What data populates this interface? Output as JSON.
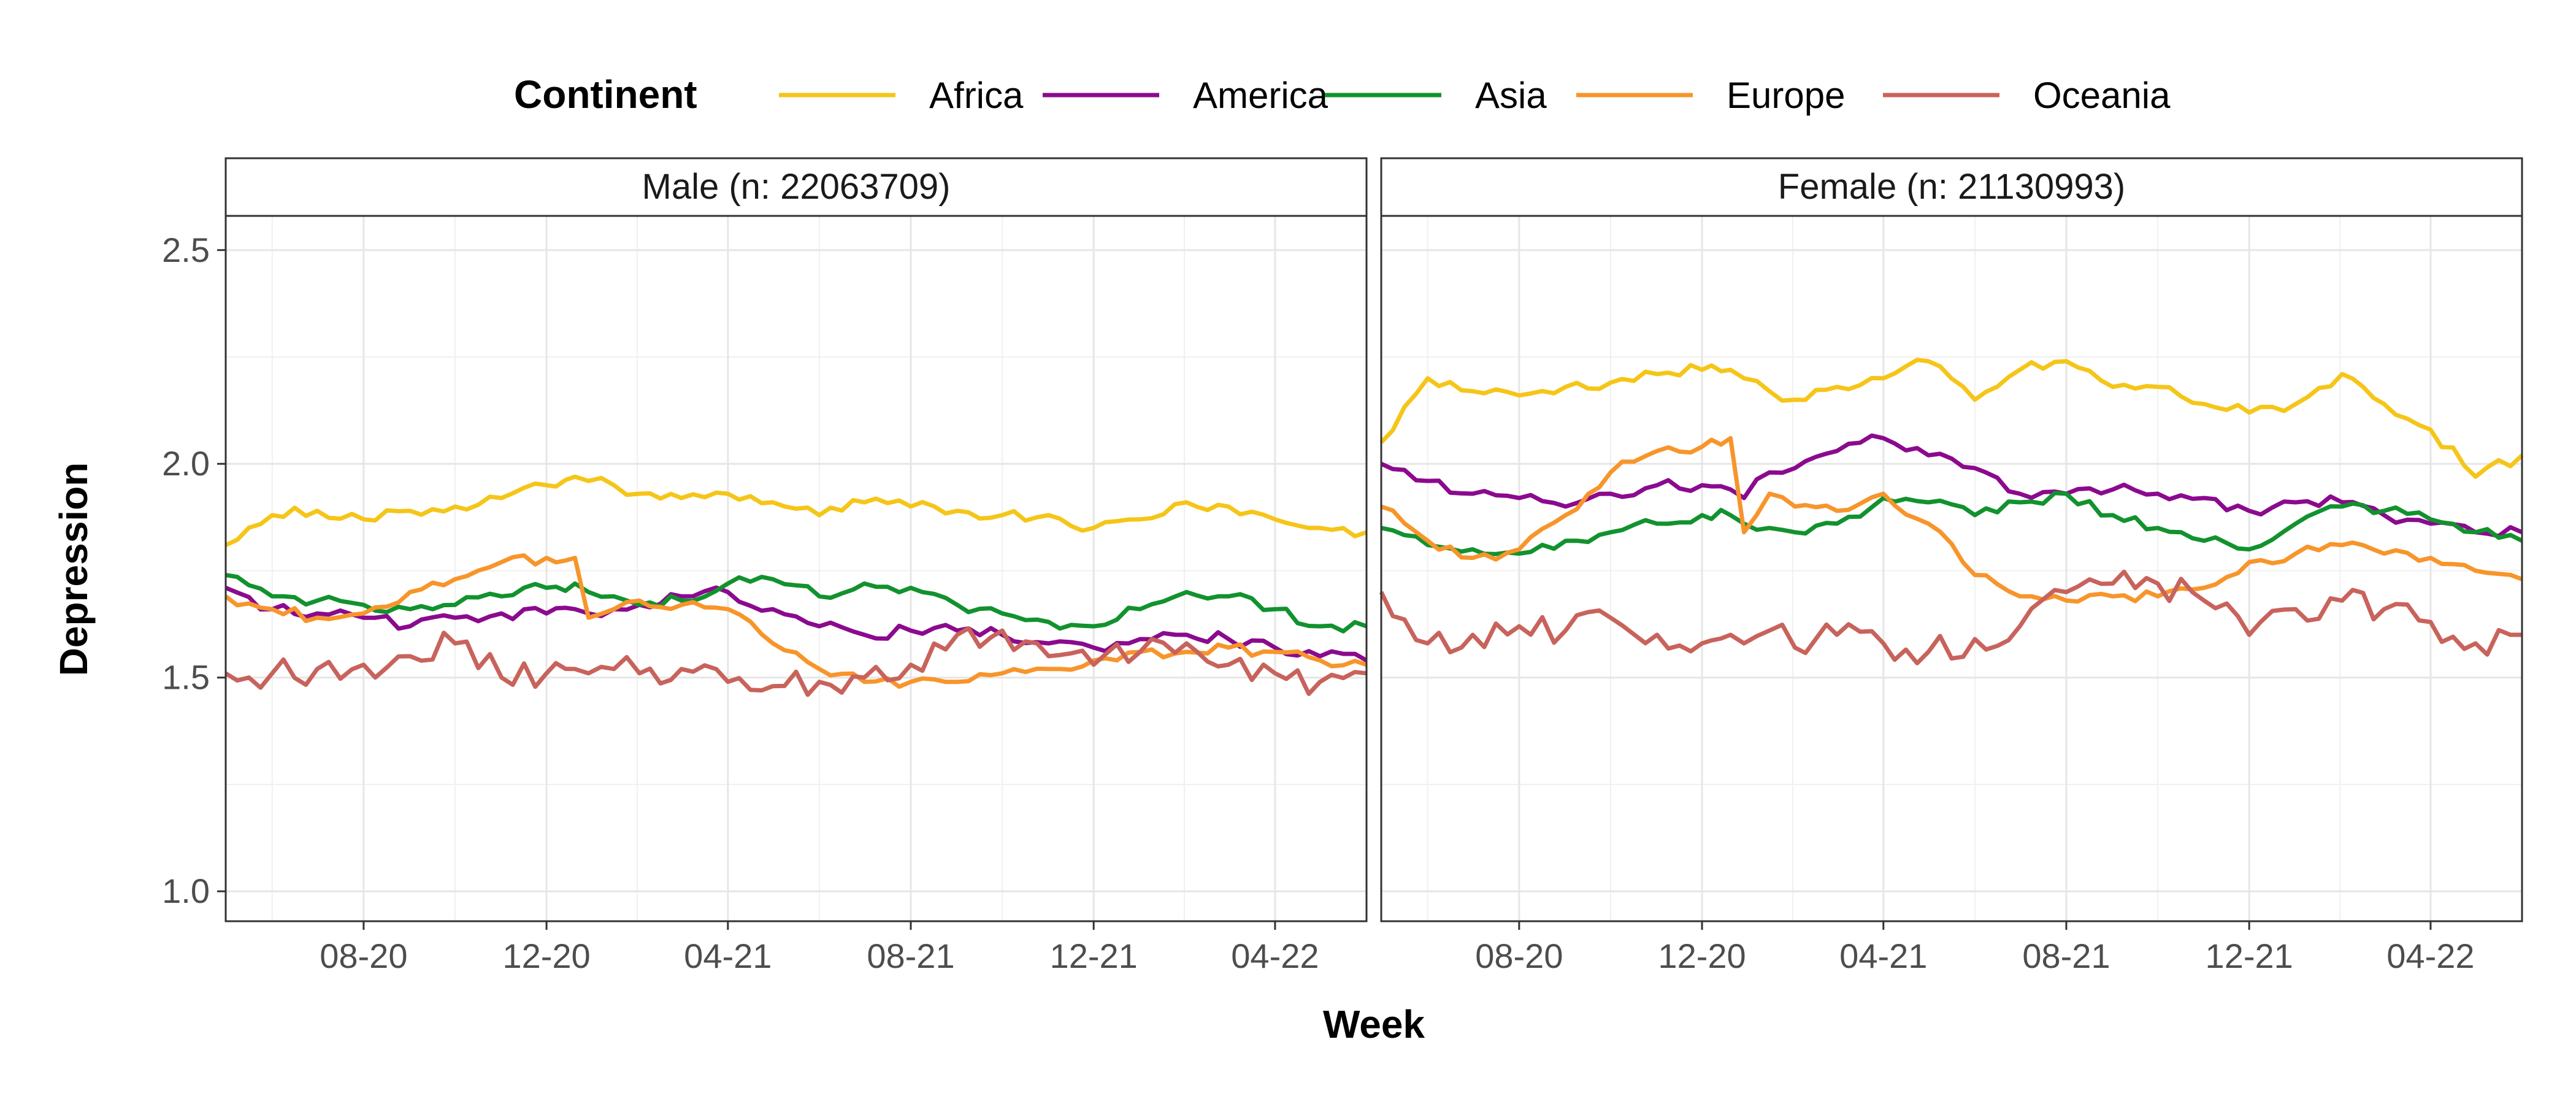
{
  "chart_data": {
    "type": "line",
    "xlabel": "Week",
    "ylabel": "Depression",
    "ylim": [
      0.93,
      2.58
    ],
    "yticks": [
      1.0,
      1.5,
      2.0,
      2.5
    ],
    "xlim": [
      "2020-05-01",
      "2022-06-01"
    ],
    "xticks": [
      {
        "date": "2020-08-01",
        "label": "08-20"
      },
      {
        "date": "2020-12-01",
        "label": "12-20"
      },
      {
        "date": "2021-04-01",
        "label": "04-21"
      },
      {
        "date": "2021-08-01",
        "label": "08-21"
      },
      {
        "date": "2021-12-01",
        "label": "12-21"
      },
      {
        "date": "2022-04-01",
        "label": "04-22"
      }
    ],
    "grid": true,
    "legend": {
      "title": "Continent",
      "position": "top"
    },
    "x": [
      "2020-05-01",
      "2020-06-01",
      "2020-07-01",
      "2020-08-01",
      "2020-09-01",
      "2020-10-01",
      "2020-11-01",
      "2020-12-01",
      "2020-12-20",
      "2020-12-29",
      "2021-01-15",
      "2021-02-01",
      "2021-03-01",
      "2021-04-01",
      "2021-05-01",
      "2021-06-01",
      "2021-07-01",
      "2021-08-01",
      "2021-09-01",
      "2021-10-01",
      "2021-11-01",
      "2021-12-01",
      "2022-01-01",
      "2022-02-01",
      "2022-03-01",
      "2022-04-01",
      "2022-05-01",
      "2022-06-01"
    ],
    "panels": [
      {
        "title": "Male (n: 22063709)",
        "series": [
          {
            "name": "Africa",
            "color": "#F5C518",
            "values": [
              1.81,
              1.88,
              1.89,
              1.87,
              1.89,
              1.9,
              1.92,
              1.95,
              1.97,
              1.96,
              1.95,
              1.93,
              1.92,
              1.93,
              1.91,
              1.88,
              1.91,
              1.9,
              1.89,
              1.88,
              1.88,
              1.85,
              1.87,
              1.91,
              1.9,
              1.87,
              1.85,
              1.84
            ]
          },
          {
            "name": "America",
            "color": "#8B0A8E",
            "values": [
              1.71,
              1.66,
              1.65,
              1.64,
              1.62,
              1.64,
              1.65,
              1.65,
              1.66,
              1.65,
              1.66,
              1.67,
              1.69,
              1.7,
              1.66,
              1.62,
              1.6,
              1.61,
              1.61,
              1.6,
              1.58,
              1.57,
              1.59,
              1.6,
              1.59,
              1.57,
              1.55,
              1.54
            ]
          },
          {
            "name": "Asia",
            "color": "#12922E",
            "values": [
              1.74,
              1.69,
              1.68,
              1.67,
              1.66,
              1.67,
              1.69,
              1.71,
              1.72,
              1.7,
              1.69,
              1.67,
              1.68,
              1.72,
              1.73,
              1.69,
              1.72,
              1.71,
              1.67,
              1.65,
              1.63,
              1.62,
              1.66,
              1.7,
              1.69,
              1.66,
              1.62,
              1.62
            ]
          },
          {
            "name": "Europe",
            "color": "#F7952B",
            "values": [
              1.69,
              1.66,
              1.64,
              1.65,
              1.7,
              1.73,
              1.77,
              1.78,
              1.78,
              1.64,
              1.66,
              1.68,
              1.67,
              1.66,
              1.58,
              1.52,
              1.49,
              1.49,
              1.49,
              1.51,
              1.52,
              1.54,
              1.56,
              1.56,
              1.57,
              1.56,
              1.54,
              1.53
            ]
          },
          {
            "name": "Oceania",
            "color": "#C8635C",
            "values": [
              1.51,
              1.51,
              1.52,
              1.53,
              1.55,
              1.58,
              1.5,
              1.51,
              1.52,
              1.51,
              1.52,
              1.51,
              1.52,
              1.49,
              1.48,
              1.49,
              1.5,
              1.53,
              1.6,
              1.61,
              1.55,
              1.53,
              1.56,
              1.58,
              1.53,
              1.51,
              1.49,
              1.51
            ]
          }
        ]
      },
      {
        "title": "Female (n: 21130993)",
        "series": [
          {
            "name": "Africa",
            "color": "#F5C518",
            "values": [
              2.05,
              2.2,
              2.17,
              2.16,
              2.18,
              2.19,
              2.21,
              2.22,
              2.22,
              2.2,
              2.17,
              2.15,
              2.18,
              2.2,
              2.24,
              2.15,
              2.22,
              2.24,
              2.18,
              2.18,
              2.14,
              2.12,
              2.14,
              2.21,
              2.14,
              2.08,
              1.97,
              2.02
            ]
          },
          {
            "name": "America",
            "color": "#8B0A8E",
            "values": [
              2.0,
              1.96,
              1.93,
              1.92,
              1.9,
              1.93,
              1.95,
              1.95,
              1.94,
              1.92,
              1.98,
              1.99,
              2.03,
              2.06,
              2.02,
              1.99,
              1.93,
              1.93,
              1.94,
              1.93,
              1.92,
              1.89,
              1.91,
              1.91,
              1.88,
              1.86,
              1.84,
              1.84
            ]
          },
          {
            "name": "Asia",
            "color": "#12922E",
            "values": [
              1.85,
              1.81,
              1.8,
              1.79,
              1.82,
              1.84,
              1.86,
              1.88,
              1.88,
              1.86,
              1.85,
              1.84,
              1.86,
              1.92,
              1.91,
              1.88,
              1.91,
              1.93,
              1.88,
              1.85,
              1.82,
              1.8,
              1.86,
              1.9,
              1.89,
              1.87,
              1.84,
              1.82
            ]
          },
          {
            "name": "Europe",
            "color": "#F7952B",
            "values": [
              1.9,
              1.82,
              1.78,
              1.8,
              1.88,
              1.98,
              2.03,
              2.04,
              2.06,
              1.84,
              1.93,
              1.9,
              1.89,
              1.93,
              1.86,
              1.74,
              1.69,
              1.68,
              1.69,
              1.69,
              1.71,
              1.77,
              1.79,
              1.81,
              1.79,
              1.78,
              1.75,
              1.73
            ]
          },
          {
            "name": "Oceania",
            "color": "#C8635C",
            "values": [
              1.7,
              1.58,
              1.6,
              1.62,
              1.61,
              1.64,
              1.6,
              1.58,
              1.6,
              1.58,
              1.61,
              1.57,
              1.6,
              1.58,
              1.56,
              1.59,
              1.62,
              1.7,
              1.72,
              1.72,
              1.68,
              1.6,
              1.66,
              1.68,
              1.66,
              1.63,
              1.58,
              1.6
            ]
          }
        ]
      }
    ]
  }
}
